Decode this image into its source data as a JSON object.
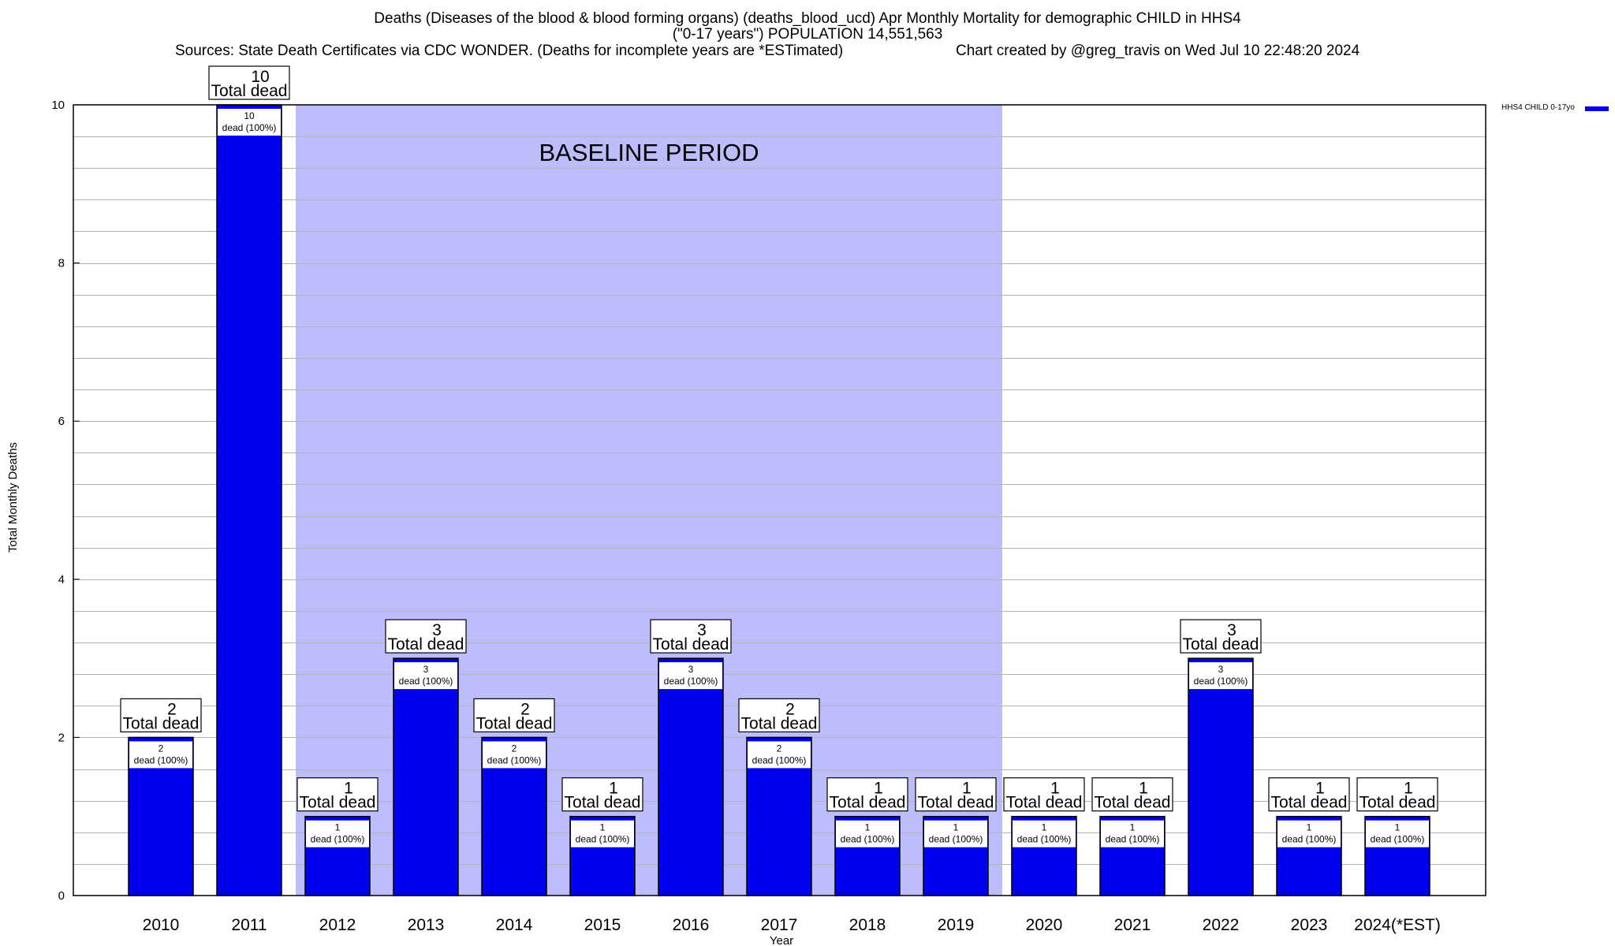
{
  "header": {
    "title_line1": "Deaths (Diseases of the blood & blood forming organs) (deaths_blood_ucd) Apr Monthly Mortality for demographic CHILD in HHS4",
    "title_line2": "(\"0-17 years\") POPULATION 14,551,563",
    "sources": "Sources: State Death Certificates via CDC WONDER. (Deaths for incomplete years are *ESTimated)",
    "credit": "Chart created by @greg_travis on Wed Jul 10 22:48:20 2024"
  },
  "legend": {
    "label": "HHS4 CHILD 0-17yo"
  },
  "colors": {
    "bar": "#0000ee",
    "bar_border": "#000000",
    "baseline_band": "#bdbdfb",
    "grid": "#b4b4b4"
  },
  "chart_data": {
    "type": "bar",
    "title": "Deaths (Diseases of the blood & blood forming organs) (deaths_blood_ucd) Apr Monthly Mortality for demographic CHILD in HHS4",
    "xlabel": "Year",
    "ylabel": "Total Monthly Deaths",
    "ylim": [
      0,
      10
    ],
    "yticks": [
      0,
      2,
      4,
      6,
      8,
      10
    ],
    "minor_grid_step": 0.4,
    "grid": true,
    "legend_position": "top-right",
    "categories": [
      "2010",
      "2011",
      "2012",
      "2013",
      "2014",
      "2015",
      "2016",
      "2017",
      "2018",
      "2019",
      "2020",
      "2021",
      "2022",
      "2023",
      "2024(*EST)"
    ],
    "series": [
      {
        "name": "HHS4 CHILD 0-17yo",
        "values": [
          2,
          10,
          1,
          3,
          2,
          1,
          3,
          2,
          1,
          1,
          1,
          1,
          3,
          1,
          1
        ]
      }
    ],
    "total_label_suffix": "Total dead",
    "inner_label_suffix": "dead (100%)",
    "baseline_period": {
      "label": "BASELINE PERIOD",
      "from": "2012",
      "to": "2019"
    }
  }
}
